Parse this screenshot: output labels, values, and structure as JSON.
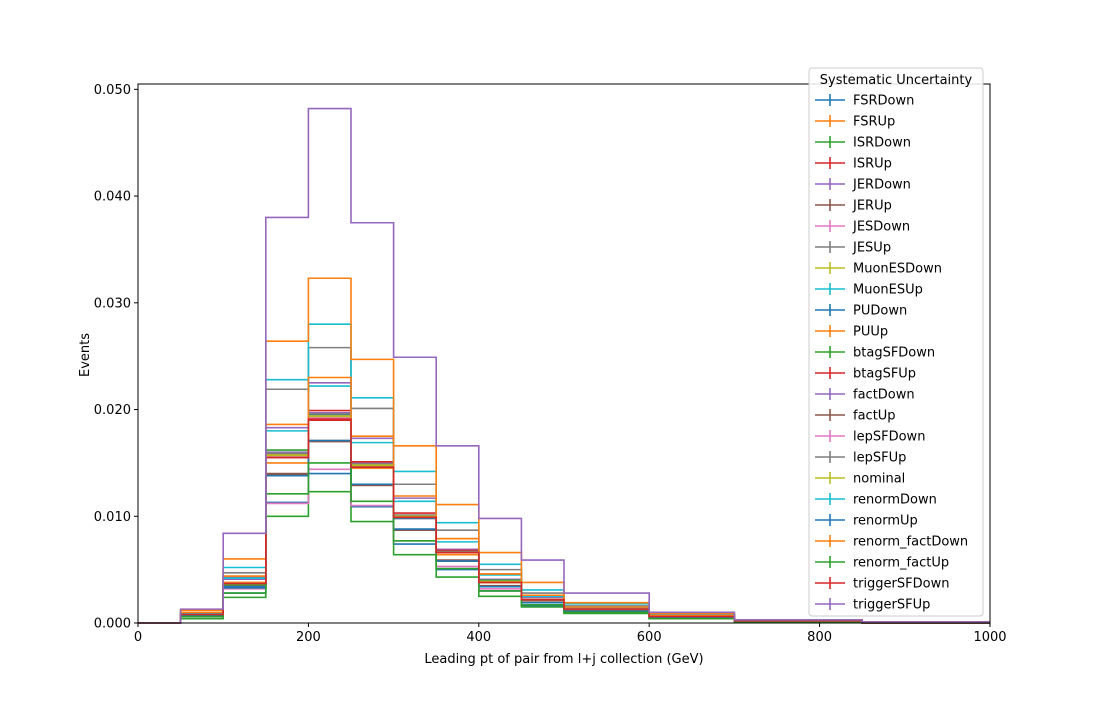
{
  "chart_data": {
    "type": "histogram-step",
    "title": "",
    "xlabel": "Leading pt of pair from l+j collection (GeV)",
    "ylabel": "Events",
    "xlim": [
      0,
      1000
    ],
    "ylim": [
      0,
      0.0505
    ],
    "xticks": [
      0,
      200,
      400,
      600,
      800,
      1000
    ],
    "xtick_labels": [
      "0",
      "200",
      "400",
      "600",
      "800",
      "1000"
    ],
    "yticks": [
      0,
      0.01,
      0.02,
      0.03,
      0.04,
      0.05
    ],
    "ytick_labels": [
      "0.000",
      "0.010",
      "0.020",
      "0.030",
      "0.040",
      "0.050"
    ],
    "grid": false,
    "legend": {
      "title": "Systematic Uncertainty",
      "placement": "upper-right"
    },
    "bin_edges": [
      0,
      50,
      100,
      150,
      200,
      250,
      300,
      350,
      400,
      450,
      500,
      600,
      700,
      850,
      1000
    ],
    "series": [
      {
        "name": "FSRDown",
        "color": "#1f77b4",
        "values": [
          0,
          0.0004,
          0.0028,
          0.0113,
          0.014,
          0.0109,
          0.0074,
          0.005,
          0.003,
          0.0016,
          0.001,
          0.0004,
          0.0001,
          0.0
        ]
      },
      {
        "name": "FSRUp",
        "color": "#ff7f0e",
        "values": [
          0,
          0.0008,
          0.0038,
          0.015,
          0.019,
          0.0145,
          0.0098,
          0.0064,
          0.0038,
          0.0021,
          0.0013,
          0.0005,
          0.0002,
          0.0
        ]
      },
      {
        "name": "ISRDown",
        "color": "#2ca02c",
        "values": [
          0,
          0.0004,
          0.0024,
          0.01,
          0.0123,
          0.0095,
          0.0064,
          0.0043,
          0.0025,
          0.0015,
          0.0009,
          0.0004,
          0.0001,
          0.0
        ]
      },
      {
        "name": "ISRUp",
        "color": "#d62728",
        "values": [
          0,
          0.0008,
          0.0036,
          0.0155,
          0.019,
          0.0148,
          0.0101,
          0.0066,
          0.0038,
          0.0022,
          0.0013,
          0.0006,
          0.0002,
          0.0
        ]
      },
      {
        "name": "JERDown",
        "color": "#9467bd",
        "values": [
          0,
          0.001,
          0.0041,
          0.016,
          0.0197,
          0.015,
          0.0099,
          0.0069,
          0.0041,
          0.0024,
          0.0014,
          0.0006,
          0.0002,
          0.0001
        ]
      },
      {
        "name": "JERUp",
        "color": "#8c564b",
        "values": [
          0,
          0.0008,
          0.0035,
          0.014,
          0.0171,
          0.0129,
          0.0087,
          0.0059,
          0.0035,
          0.0021,
          0.0012,
          0.0005,
          0.0002,
          0.0
        ]
      },
      {
        "name": "JESDown",
        "color": "#e377c2",
        "values": [
          0,
          0.0006,
          0.0032,
          0.0112,
          0.0144,
          0.011,
          0.0077,
          0.0053,
          0.0032,
          0.0019,
          0.0011,
          0.0005,
          0.0001,
          0.0
        ]
      },
      {
        "name": "JESUp",
        "color": "#7f7f7f",
        "values": [
          0,
          0.001,
          0.0047,
          0.0219,
          0.0258,
          0.0201,
          0.013,
          0.0087,
          0.005,
          0.0028,
          0.0016,
          0.0007,
          0.0002,
          0.0001
        ]
      },
      {
        "name": "MuonESDown",
        "color": "#bcbd22",
        "values": [
          0,
          0.0008,
          0.0036,
          0.0158,
          0.0193,
          0.0147,
          0.0099,
          0.0066,
          0.0038,
          0.0022,
          0.0013,
          0.0006,
          0.0002,
          0.0
        ]
      },
      {
        "name": "MuonESUp",
        "color": "#17becf",
        "values": [
          0,
          0.0009,
          0.0052,
          0.0228,
          0.028,
          0.0211,
          0.0142,
          0.0094,
          0.0055,
          0.0031,
          0.0018,
          0.0008,
          0.0002,
          0.0001
        ]
      },
      {
        "name": "PUDown",
        "color": "#1f77b4",
        "values": [
          0,
          0.0007,
          0.0034,
          0.0156,
          0.0195,
          0.0146,
          0.0098,
          0.0067,
          0.0039,
          0.0022,
          0.0013,
          0.0006,
          0.0002,
          0.0
        ]
      },
      {
        "name": "PUUp",
        "color": "#ff7f0e",
        "values": [
          0,
          0.0012,
          0.006,
          0.0264,
          0.0323,
          0.0247,
          0.0166,
          0.0111,
          0.0066,
          0.0038,
          0.0019,
          0.0009,
          0.0003,
          0.0001
        ]
      },
      {
        "name": "btagSFDown",
        "color": "#2ca02c",
        "values": [
          0,
          0.0008,
          0.0036,
          0.0162,
          0.0196,
          0.0148,
          0.01,
          0.0067,
          0.004,
          0.0022,
          0.0013,
          0.0006,
          0.0002,
          0.0
        ]
      },
      {
        "name": "btagSFUp",
        "color": "#d62728",
        "values": [
          0,
          0.0008,
          0.0037,
          0.0157,
          0.0199,
          0.0151,
          0.0103,
          0.0068,
          0.0039,
          0.0022,
          0.0013,
          0.0006,
          0.0002,
          0.0
        ]
      },
      {
        "name": "factDown",
        "color": "#9467bd",
        "values": [
          0,
          0.001,
          0.0043,
          0.0183,
          0.0225,
          0.0173,
          0.0117,
          0.0079,
          0.0046,
          0.0026,
          0.0015,
          0.0007,
          0.0002,
          0.0001
        ]
      },
      {
        "name": "factUp",
        "color": "#8c564b",
        "values": [
          0,
          0.0007,
          0.0033,
          0.0139,
          0.017,
          0.0129,
          0.0087,
          0.0058,
          0.0034,
          0.0019,
          0.0011,
          0.0005,
          0.0001,
          0.0
        ]
      },
      {
        "name": "lepSFDown",
        "color": "#e377c2",
        "values": [
          0,
          0.0008,
          0.0037,
          0.0156,
          0.0192,
          0.0146,
          0.0099,
          0.0066,
          0.0039,
          0.0022,
          0.0013,
          0.0006,
          0.0002,
          0.0
        ]
      },
      {
        "name": "lepSFUp",
        "color": "#7f7f7f",
        "values": [
          0,
          0.0008,
          0.0037,
          0.0159,
          0.0196,
          0.0149,
          0.0101,
          0.0067,
          0.0039,
          0.0022,
          0.0013,
          0.0006,
          0.0002,
          0.0
        ]
      },
      {
        "name": "nominal",
        "color": "#bcbd22",
        "values": [
          0,
          0.0008,
          0.0037,
          0.0157,
          0.0194,
          0.0148,
          0.01,
          0.0066,
          0.0039,
          0.0022,
          0.0013,
          0.0006,
          0.0002,
          0.0
        ]
      },
      {
        "name": "renormDown",
        "color": "#17becf",
        "values": [
          0,
          0.0009,
          0.0042,
          0.018,
          0.0222,
          0.0169,
          0.0114,
          0.0076,
          0.0045,
          0.0025,
          0.0015,
          0.0007,
          0.0002,
          0.0
        ]
      },
      {
        "name": "renormUp",
        "color": "#1f77b4",
        "values": [
          0,
          0.0007,
          0.0033,
          0.0138,
          0.0171,
          0.013,
          0.0088,
          0.0058,
          0.0034,
          0.0019,
          0.0011,
          0.0005,
          0.0001,
          0.0
        ]
      },
      {
        "name": "renorm_factDown",
        "color": "#ff7f0e",
        "values": [
          0,
          0.001,
          0.0044,
          0.0186,
          0.023,
          0.0175,
          0.0119,
          0.0079,
          0.0046,
          0.0026,
          0.0015,
          0.0007,
          0.0002,
          0.0001
        ]
      },
      {
        "name": "renorm_factUp",
        "color": "#2ca02c",
        "values": [
          0,
          0.0006,
          0.0028,
          0.0121,
          0.015,
          0.0114,
          0.0077,
          0.0051,
          0.003,
          0.0017,
          0.001,
          0.0004,
          0.0001,
          0.0
        ]
      },
      {
        "name": "triggerSFDown",
        "color": "#d62728",
        "values": [
          0,
          0.0008,
          0.0037,
          0.0155,
          0.0191,
          0.0146,
          0.0099,
          0.0066,
          0.0038,
          0.0022,
          0.0013,
          0.0006,
          0.0002,
          0.0
        ]
      },
      {
        "name": "triggerSFUp",
        "color": "#9467bd",
        "values": [
          0,
          0.0013,
          0.0084,
          0.038,
          0.0482,
          0.0375,
          0.0249,
          0.0166,
          0.0098,
          0.0059,
          0.0028,
          0.001,
          0.0003,
          0.0001
        ]
      }
    ]
  }
}
